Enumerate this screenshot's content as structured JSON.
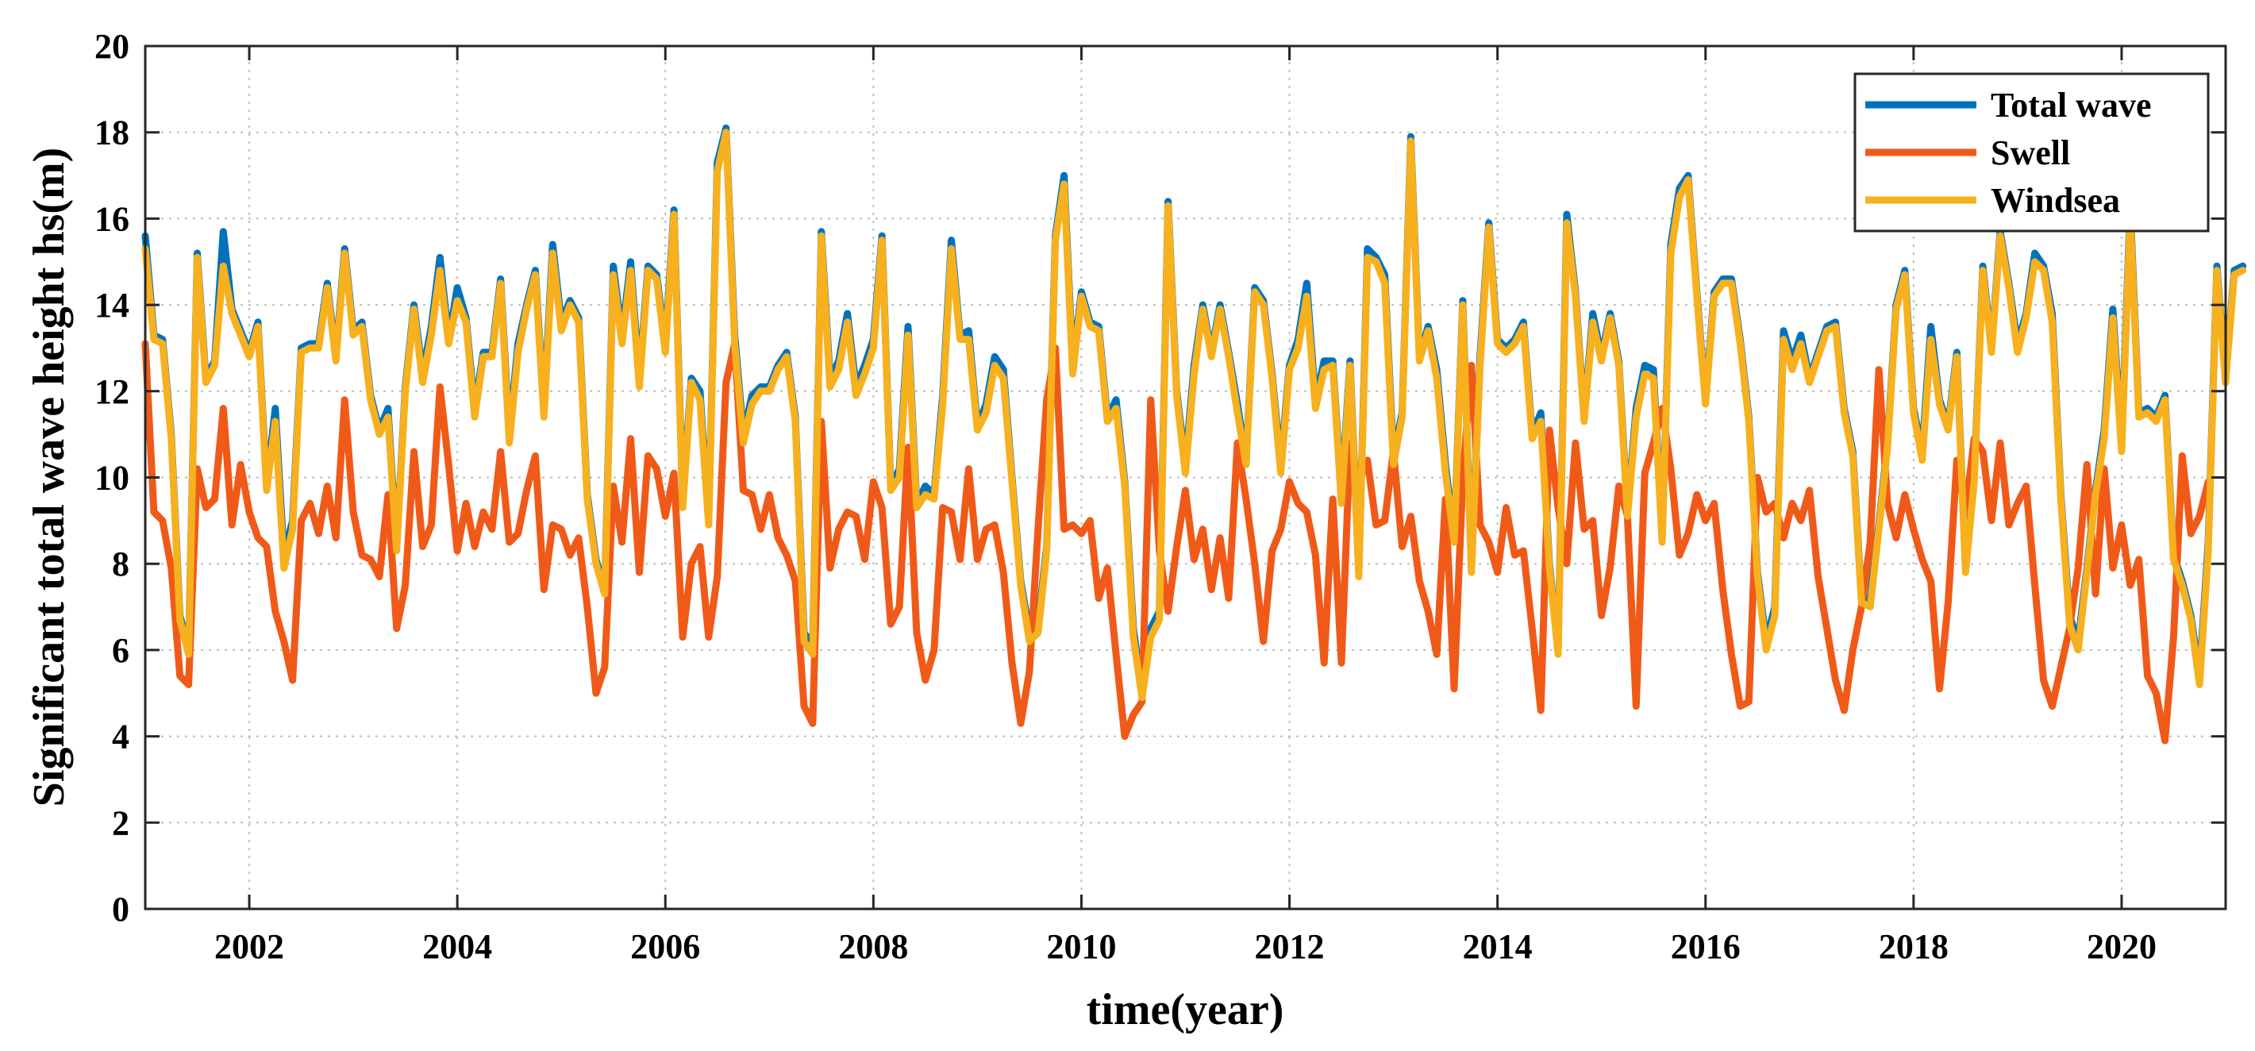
{
  "chart_data": {
    "type": "line",
    "title": "",
    "xlabel": "time(year)",
    "ylabel": "Significant total wave height  hs(m)",
    "xlim": [
      2001.0,
      2021.0
    ],
    "ylim": [
      0,
      20
    ],
    "xticks": [
      2002,
      2004,
      2006,
      2008,
      2010,
      2012,
      2014,
      2016,
      2018,
      2020
    ],
    "xtick_labels": [
      "2002",
      "2004",
      "2006",
      "2008",
      "2010",
      "2012",
      "2014",
      "2016",
      "2018",
      "2020"
    ],
    "yticks": [
      0,
      2,
      4,
      6,
      8,
      10,
      12,
      14,
      16,
      18,
      20
    ],
    "ytick_labels": [
      "0",
      "2",
      "4",
      "6",
      "8",
      "10",
      "12",
      "14",
      "16",
      "18",
      "20"
    ],
    "grid": true,
    "legend_position": "top-right",
    "x_start": 2001.0,
    "x_step": 0.08333,
    "series": [
      {
        "name": "Total wave",
        "color": "#0072BD",
        "values": [
          15.6,
          13.3,
          13.2,
          11.0,
          6.8,
          6.0,
          15.2,
          12.3,
          12.7,
          15.7,
          13.9,
          13.4,
          12.9,
          13.6,
          9.8,
          11.6,
          8.2,
          9.0,
          13.0,
          13.1,
          13.1,
          14.5,
          12.8,
          15.3,
          13.4,
          13.6,
          11.9,
          11.1,
          11.6,
          8.4,
          12.1,
          14.0,
          12.4,
          13.5,
          15.1,
          13.2,
          14.4,
          13.7,
          11.6,
          12.9,
          12.9,
          14.6,
          11.0,
          13.1,
          14.0,
          14.8,
          11.6,
          15.4,
          13.6,
          14.1,
          13.7,
          9.6,
          8.1,
          7.4,
          14.9,
          13.3,
          15.0,
          12.3,
          14.9,
          14.7,
          13.1,
          16.2,
          9.5,
          12.3,
          12.0,
          9.0,
          17.3,
          18.1,
          13.3,
          11.0,
          11.9,
          12.1,
          12.1,
          12.6,
          12.9,
          11.4,
          6.4,
          6.1,
          15.7,
          12.3,
          12.7,
          13.8,
          12.1,
          12.6,
          13.2,
          15.6,
          9.8,
          10.2,
          13.5,
          9.4,
          9.8,
          9.6,
          11.9,
          15.5,
          13.3,
          13.4,
          11.2,
          11.7,
          12.8,
          12.5,
          10.0,
          7.6,
          6.4,
          6.6,
          8.4,
          15.6,
          17.0,
          12.6,
          14.3,
          13.6,
          13.5,
          11.4,
          11.8,
          9.9,
          6.5,
          5.0,
          6.5,
          6.9,
          16.4,
          12.0,
          10.3,
          12.6,
          14.0,
          12.9,
          14.0,
          12.9,
          11.7,
          10.4,
          14.4,
          14.1,
          12.4,
          10.3,
          12.6,
          13.2,
          14.5,
          11.8,
          12.7,
          12.7,
          9.6,
          12.7,
          7.8,
          15.3,
          15.1,
          14.7,
          10.5,
          11.5,
          17.9,
          12.8,
          13.5,
          12.5,
          10.3,
          8.6,
          14.1,
          7.9,
          12.8,
          15.9,
          13.2,
          13.0,
          13.2,
          13.6,
          11.0,
          11.5,
          8.0,
          6.0,
          16.1,
          14.3,
          11.4,
          13.8,
          12.8,
          13.8,
          12.7,
          9.2,
          11.6,
          12.6,
          12.5,
          8.6,
          15.4,
          16.7,
          17.0,
          14.3,
          11.8,
          14.3,
          14.6,
          14.6,
          13.2,
          11.4,
          7.8,
          6.2,
          7.0,
          13.4,
          12.7,
          13.3,
          12.3,
          12.9,
          13.5,
          13.6,
          11.6,
          10.6,
          7.2,
          7.2,
          8.9,
          10.8,
          14.0,
          14.8,
          11.6,
          10.6,
          13.5,
          11.8,
          11.2,
          12.9,
          7.9,
          10.0,
          14.9,
          13.0,
          15.7,
          14.5,
          13.1,
          13.8,
          15.2,
          14.9,
          13.8,
          9.6,
          6.8,
          6.2,
          7.9,
          9.7,
          11.1,
          13.9,
          10.8,
          16.3,
          11.5,
          11.6,
          11.4,
          11.9,
          8.2,
          7.6,
          6.8,
          5.4,
          8.5,
          14.9,
          12.3,
          14.8,
          14.9
        ],
        "x_step": 0.08333
      },
      {
        "name": "Swell",
        "color": "#F05A19",
        "values": [
          13.1,
          9.2,
          9.0,
          7.9,
          5.4,
          5.2,
          10.2,
          9.3,
          9.5,
          11.6,
          8.9,
          10.3,
          9.2,
          8.6,
          8.4,
          6.9,
          6.2,
          5.3,
          9.0,
          9.4,
          8.7,
          9.8,
          8.6,
          11.8,
          9.2,
          8.2,
          8.1,
          7.7,
          9.6,
          6.5,
          7.5,
          10.6,
          8.4,
          8.9,
          12.1,
          10.3,
          8.3,
          9.4,
          8.4,
          9.2,
          8.8,
          10.6,
          8.5,
          8.7,
          9.7,
          10.5,
          7.4,
          8.9,
          8.8,
          8.2,
          8.6,
          7.0,
          5.0,
          5.6,
          9.8,
          8.5,
          10.9,
          7.8,
          10.5,
          10.2,
          9.1,
          10.1,
          6.3,
          8.0,
          8.4,
          6.3,
          7.7,
          12.2,
          13.1,
          9.7,
          9.6,
          8.8,
          9.6,
          8.6,
          8.2,
          7.6,
          4.7,
          4.3,
          11.3,
          7.9,
          8.8,
          9.2,
          9.1,
          8.1,
          9.9,
          9.3,
          6.6,
          7.0,
          10.7,
          6.4,
          5.3,
          6.0,
          9.3,
          9.2,
          8.1,
          10.2,
          8.1,
          8.8,
          8.9,
          7.8,
          5.7,
          4.3,
          5.5,
          8.8,
          11.8,
          13.0,
          8.8,
          8.9,
          8.7,
          9.0,
          7.2,
          7.9,
          5.9,
          4.0,
          4.5,
          4.8,
          11.8,
          8.3,
          6.9,
          8.4,
          9.7,
          8.1,
          8.8,
          7.4,
          8.6,
          7.2,
          10.8,
          9.5,
          8.0,
          6.2,
          8.3,
          8.8,
          9.9,
          9.4,
          9.2,
          8.2,
          5.7,
          9.5,
          5.7,
          10.8,
          9.9,
          10.4,
          8.9,
          9.0,
          10.6,
          8.4,
          9.1,
          7.6,
          6.9,
          5.9,
          9.5,
          5.1,
          10.0,
          12.6,
          8.9,
          8.5,
          7.8,
          9.3,
          8.2,
          8.3,
          6.5,
          4.6,
          11.1,
          9.3,
          8.0,
          10.8,
          8.8,
          9.0,
          6.8,
          7.9,
          9.8,
          9.1,
          4.7,
          10.1,
          10.8,
          11.6,
          10.2,
          8.2,
          8.7,
          9.6,
          9.0,
          9.4,
          7.4,
          5.9,
          4.7,
          4.8,
          10.0,
          9.2,
          9.4,
          8.6,
          9.4,
          9.0,
          9.7,
          7.7,
          6.5,
          5.3,
          4.6,
          6.0,
          7.0,
          8.5,
          12.5,
          9.4,
          8.6,
          9.6,
          8.8,
          8.1,
          7.6,
          5.1,
          7.1,
          10.4,
          9.2,
          10.9,
          10.6,
          9.0,
          10.8,
          8.9,
          9.4,
          9.8,
          7.5,
          5.3,
          4.7,
          5.6,
          6.5,
          7.9,
          10.3,
          7.3,
          10.2,
          7.9,
          8.9,
          7.5,
          8.1,
          5.4,
          5.0,
          3.9,
          6.3,
          10.5,
          8.7,
          9.1,
          9.9
        ],
        "x_step": 0.08333
      },
      {
        "name": "Windsea",
        "color": "#F7B01E",
        "values": [
          15.3,
          13.2,
          13.1,
          10.9,
          6.7,
          5.9,
          15.1,
          12.2,
          12.6,
          14.9,
          13.8,
          13.3,
          12.8,
          13.5,
          9.7,
          11.3,
          7.9,
          8.8,
          12.9,
          13.0,
          13.0,
          14.4,
          12.7,
          15.2,
          13.3,
          13.5,
          11.8,
          11.0,
          11.4,
          8.3,
          12.0,
          13.9,
          12.2,
          13.3,
          14.8,
          13.1,
          14.1,
          13.6,
          11.4,
          12.8,
          12.8,
          14.5,
          10.8,
          12.9,
          13.9,
          14.7,
          11.4,
          15.2,
          13.4,
          14.0,
          13.6,
          9.5,
          8.0,
          7.3,
          14.7,
          13.1,
          14.8,
          12.1,
          14.8,
          14.6,
          12.9,
          16.1,
          9.3,
          12.2,
          11.8,
          8.9,
          17.1,
          18.0,
          13.1,
          10.8,
          11.7,
          12.0,
          12.0,
          12.5,
          12.8,
          11.3,
          6.2,
          5.9,
          15.6,
          12.1,
          12.5,
          13.6,
          11.9,
          12.4,
          13.0,
          15.5,
          9.7,
          10.0,
          13.3,
          9.3,
          9.6,
          9.5,
          11.7,
          15.3,
          13.2,
          13.2,
          11.1,
          11.5,
          12.6,
          12.3,
          9.9,
          7.5,
          6.2,
          6.4,
          8.3,
          15.5,
          16.8,
          12.4,
          14.2,
          13.5,
          13.4,
          11.3,
          11.6,
          9.8,
          6.3,
          4.9,
          6.3,
          6.7,
          16.3,
          11.9,
          10.1,
          12.4,
          13.9,
          12.8,
          13.9,
          12.8,
          11.5,
          10.3,
          14.3,
          14.0,
          12.3,
          10.1,
          12.5,
          13.0,
          14.2,
          11.6,
          12.5,
          12.6,
          9.4,
          12.6,
          7.7,
          15.1,
          15.0,
          14.5,
          10.3,
          11.4,
          17.8,
          12.7,
          13.4,
          12.3,
          10.1,
          8.5,
          14.0,
          7.8,
          12.6,
          15.8,
          13.1,
          12.9,
          13.1,
          13.5,
          10.9,
          11.3,
          7.9,
          5.9,
          15.9,
          14.2,
          11.3,
          13.6,
          12.7,
          13.7,
          12.6,
          9.1,
          11.4,
          12.4,
          12.3,
          8.5,
          15.2,
          16.5,
          16.9,
          14.2,
          11.7,
          14.2,
          14.5,
          14.5,
          13.1,
          11.3,
          7.7,
          6.0,
          6.8,
          13.2,
          12.5,
          13.1,
          12.2,
          12.8,
          13.4,
          13.5,
          11.5,
          10.5,
          7.1,
          7.0,
          8.8,
          10.7,
          13.9,
          14.7,
          11.5,
          10.4,
          13.2,
          11.7,
          11.1,
          12.8,
          7.8,
          9.9,
          14.8,
          12.9,
          15.6,
          14.4,
          12.9,
          13.7,
          15.0,
          14.8,
          13.6,
          9.5,
          6.6,
          6.0,
          7.8,
          9.6,
          10.9,
          13.7,
          10.6,
          16.1,
          11.4,
          11.5,
          11.3,
          11.8,
          8.1,
          7.5,
          6.7,
          5.2,
          8.3,
          14.8,
          12.2,
          14.7,
          14.8
        ],
        "x_step": 0.08333
      }
    ]
  }
}
